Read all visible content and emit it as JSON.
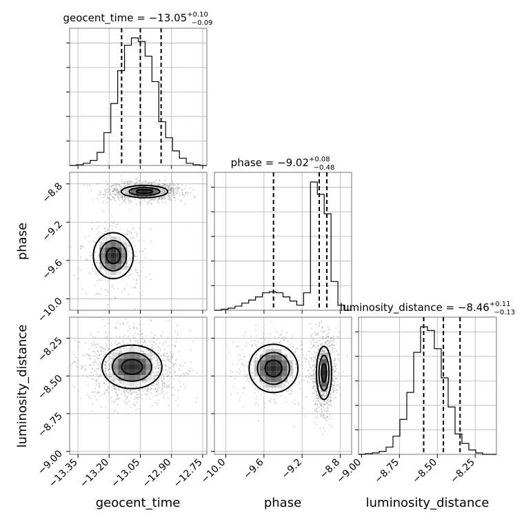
{
  "chart_data": {
    "type": "corner",
    "grid": true,
    "parameters": [
      {
        "name": "geocent_time",
        "label": "geocent_time",
        "range": [
          -13.39,
          -12.73
        ],
        "ticks": [
          "−13.35",
          "−13.20",
          "−13.05",
          "−12.90",
          "−12.75"
        ],
        "tick_values": [
          -13.35,
          -13.2,
          -13.05,
          -12.9,
          -12.75
        ],
        "title_main": "geocent_time = −13.05",
        "title_sup": "+0.10",
        "title_sub": "−0.09",
        "quantiles": [
          -13.14,
          -13.05,
          -12.95
        ],
        "hist_edges_start": -13.39,
        "hist_edges_step": 0.033,
        "hist_counts": [
          0,
          1,
          3,
          7,
          18,
          45,
          85,
          130,
          165,
          175,
          170,
          150,
          115,
          60,
          38,
          20,
          10,
          3,
          1,
          0
        ]
      },
      {
        "name": "phase",
        "label": "phase",
        "range": [
          -10.12,
          -8.68
        ],
        "ticks": [
          "−10.0",
          "−9.6",
          "−9.2",
          "−8.8"
        ],
        "tick_values": [
          -10.0,
          -9.6,
          -9.2,
          -8.8
        ],
        "title_main": "phase = −9.02",
        "title_sup": "+0.08",
        "title_sub": "−0.48",
        "quantiles": [
          -9.5,
          -9.02,
          -8.94
        ],
        "hist_edges_start": -10.12,
        "hist_edges_step": 0.072,
        "hist_counts": [
          0,
          1,
          2,
          4,
          7,
          10,
          13,
          17,
          18,
          17,
          13,
          9,
          5,
          17,
          125,
          113,
          94,
          28,
          5,
          0
        ]
      },
      {
        "name": "luminosity_distance",
        "label": "luminosity_distance",
        "range": [
          -9.02,
          -8.11
        ],
        "ticks": [
          "−9.00",
          "−8.75",
          "−8.50",
          "−8.25"
        ],
        "tick_values": [
          -9.0,
          -8.75,
          -8.5,
          -8.25
        ],
        "title_main": "luminosity_distance = −8.46",
        "title_sup": "+0.11",
        "title_sub": "−0.13",
        "quantiles": [
          -8.59,
          -8.46,
          -8.35
        ],
        "hist_edges_start": -9.02,
        "hist_edges_step": 0.0455,
        "hist_counts": [
          0,
          1,
          2,
          4,
          10,
          25,
          48,
          85,
          140,
          175,
          170,
          145,
          105,
          65,
          28,
          15,
          6,
          2,
          0,
          0
        ]
      }
    ],
    "joint_modes": [
      {
        "x": "geocent_time",
        "y": "phase",
        "modes": [
          {
            "cx": -13.03,
            "cy": -8.88,
            "sx": 0.07,
            "sy": 0.04,
            "weight": 0.75
          },
          {
            "cx": -13.18,
            "cy": -9.55,
            "sx": 0.06,
            "sy": 0.15,
            "weight": 0.25
          }
        ]
      },
      {
        "x": "geocent_time",
        "y": "luminosity_distance",
        "modes": [
          {
            "cx": -13.09,
            "cy": -8.44,
            "sx": 0.09,
            "sy": 0.09,
            "weight": 1.0
          }
        ]
      },
      {
        "x": "phase",
        "y": "luminosity_distance",
        "modes": [
          {
            "cx": -9.5,
            "cy": -8.45,
            "sx": 0.16,
            "sy": 0.1,
            "weight": 0.3
          },
          {
            "cx": -8.97,
            "cy": -8.48,
            "sx": 0.05,
            "sy": 0.11,
            "weight": 0.7
          }
        ]
      }
    ]
  }
}
